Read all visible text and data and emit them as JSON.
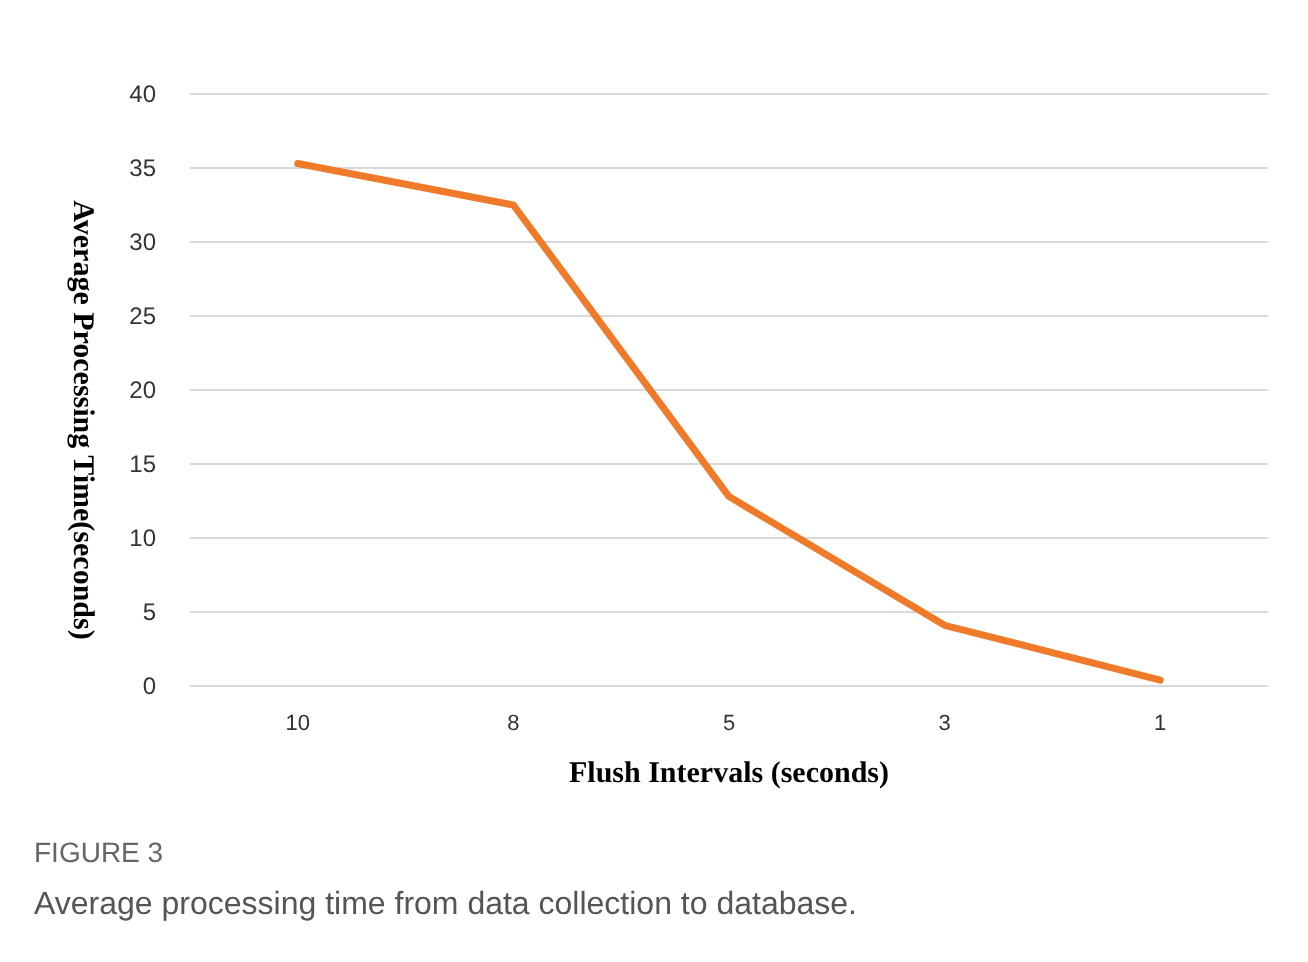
{
  "chart_data": {
    "type": "line",
    "xlabel": "Flush Intervals (seconds)",
    "ylabel": "Average Processing Time(seconds)",
    "categories": [
      "10",
      "8",
      "5",
      "3",
      "1"
    ],
    "series": [
      {
        "color": "#ee7a2a",
        "values": [
          35.3,
          32.5,
          12.8,
          4.1,
          0.4
        ]
      }
    ],
    "ylim": [
      0,
      40
    ],
    "yticks": [
      0,
      5,
      10,
      15,
      20,
      25,
      30,
      35,
      40
    ],
    "grid": "y",
    "marker": "none",
    "line_style": "solid",
    "annotations": [
      "FIGURE 3",
      "Average processing time from data collection to database."
    ]
  }
}
